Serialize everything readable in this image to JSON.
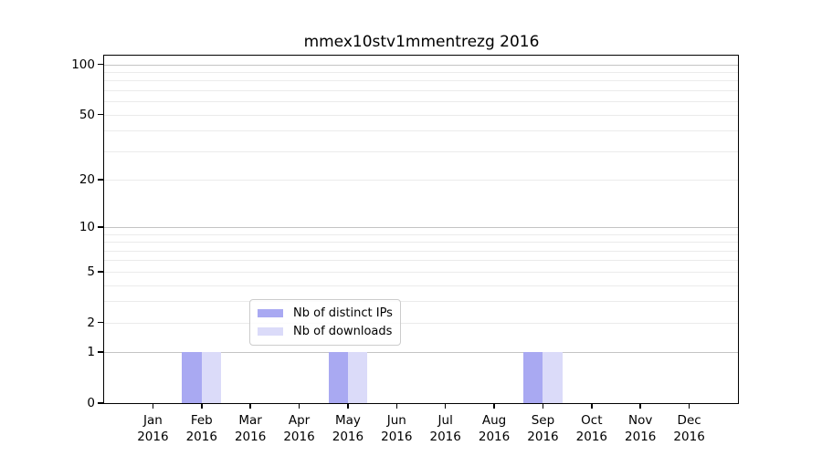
{
  "chart_data": {
    "type": "bar",
    "title": "mmex10stv1mmentrezg 2016",
    "categories": [
      "Jan 2016",
      "Feb 2016",
      "Mar 2016",
      "Apr 2016",
      "May 2016",
      "Jun 2016",
      "Jul 2016",
      "Aug 2016",
      "Sep 2016",
      "Oct 2016",
      "Nov 2016",
      "Dec 2016"
    ],
    "x_tick_line1": [
      "Jan",
      "Feb",
      "Mar",
      "Apr",
      "May",
      "Jun",
      "Jul",
      "Aug",
      "Sep",
      "Oct",
      "Nov",
      "Dec"
    ],
    "x_tick_line2": [
      "2016",
      "2016",
      "2016",
      "2016",
      "2016",
      "2016",
      "2016",
      "2016",
      "2016",
      "2016",
      "2016",
      "2016"
    ],
    "series": [
      {
        "name": "Nb of distinct IPs",
        "color": "#a9a9f2",
        "values": [
          0,
          1,
          0,
          0,
          1,
          0,
          0,
          0,
          1,
          0,
          0,
          0
        ]
      },
      {
        "name": "Nb of downloads",
        "color": "#dbdbf9",
        "values": [
          0,
          1,
          0,
          0,
          1,
          0,
          0,
          0,
          1,
          0,
          0,
          0
        ]
      }
    ],
    "yscale": "log1p",
    "ylim": [
      0,
      113
    ],
    "yticks": [
      0,
      1,
      2,
      5,
      10,
      20,
      50,
      100
    ],
    "major_gridlines": [
      1,
      10,
      100
    ],
    "minor_gridlines": [
      2,
      3,
      4,
      5,
      6,
      7,
      8,
      9,
      20,
      30,
      40,
      50,
      60,
      70,
      80,
      90
    ],
    "grid": "horizontal-only",
    "legend_position": "lower-center-inside",
    "colors": {
      "background": "#ffffff",
      "axis": "#000000",
      "major_grid": "#c4c4c4",
      "minor_grid": "#ebebeb",
      "legend_border": "#cccccc"
    }
  }
}
